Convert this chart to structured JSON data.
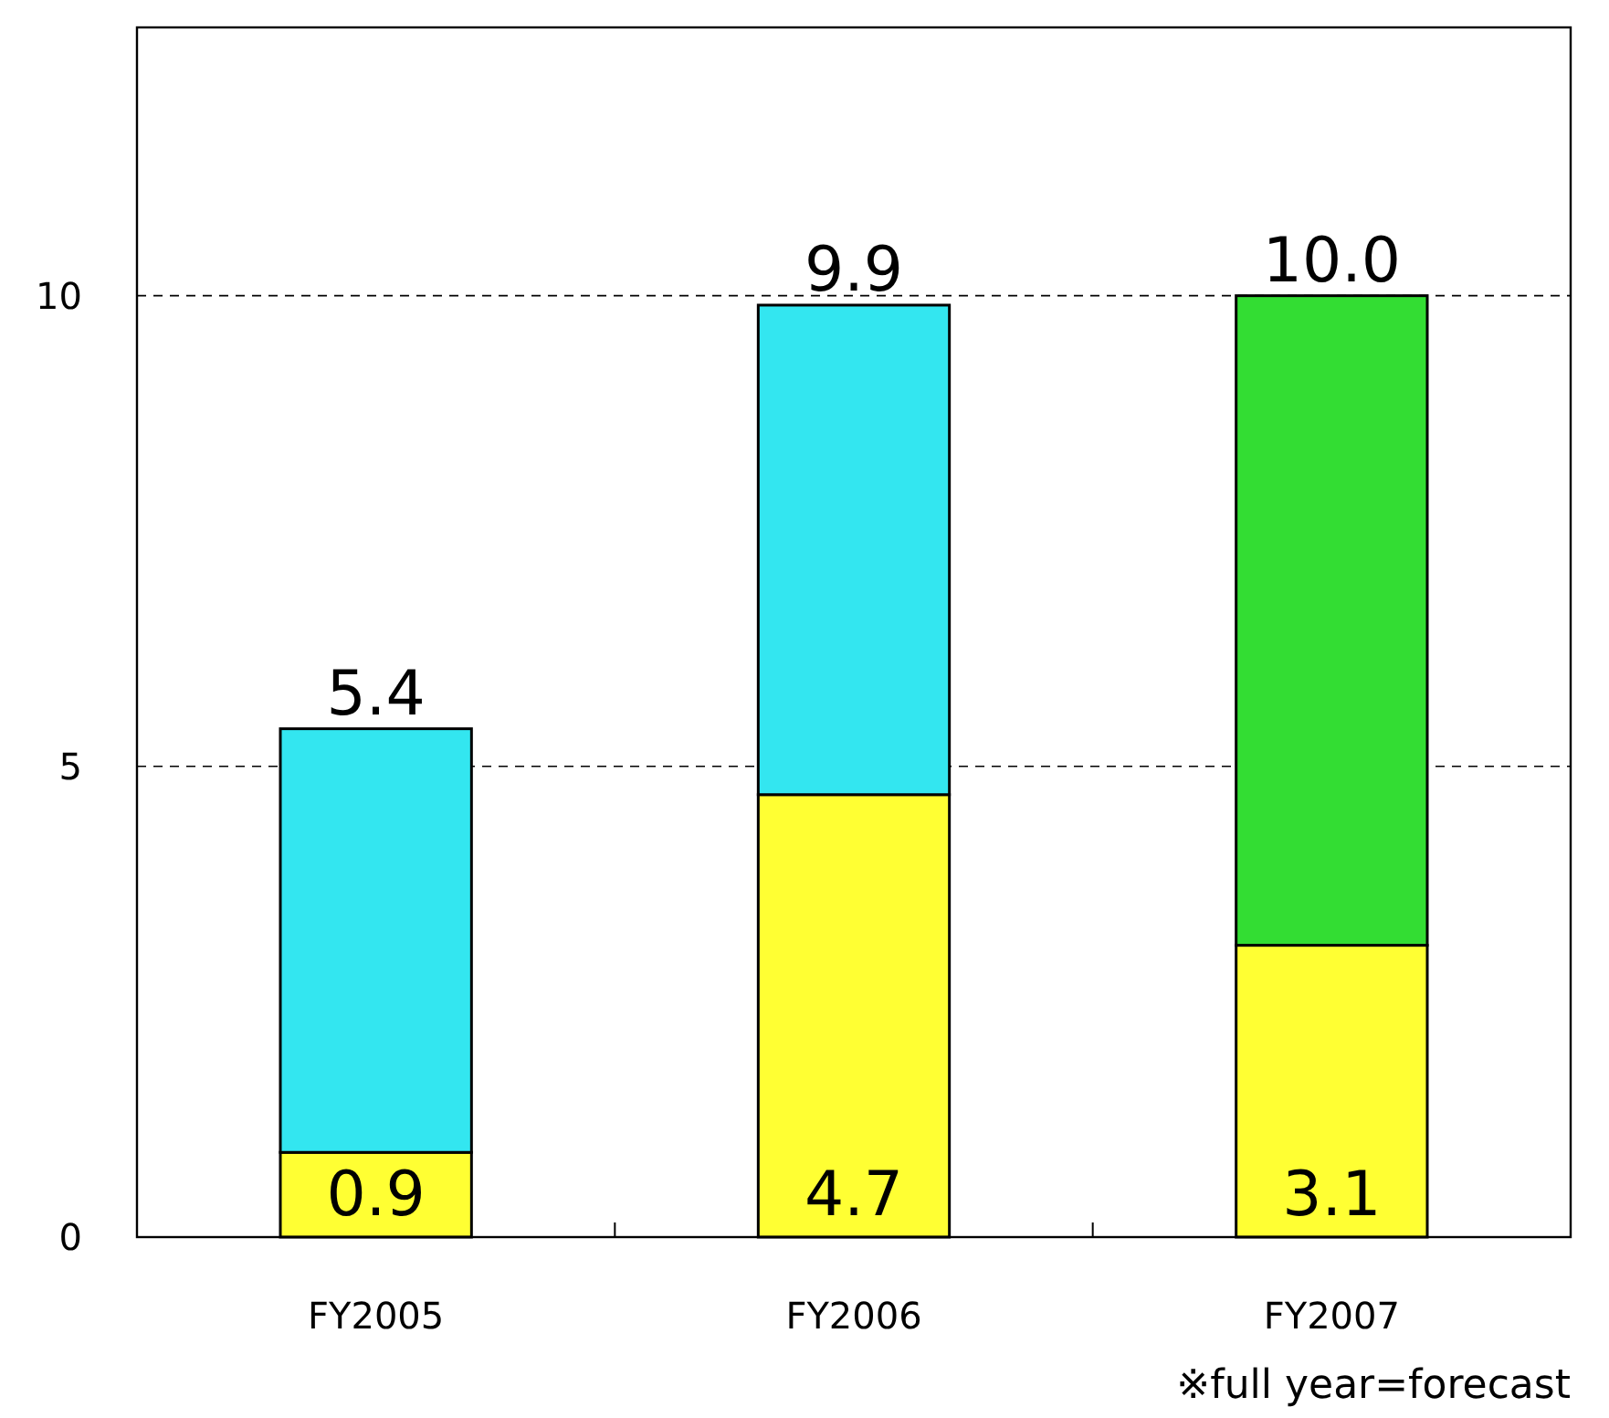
{
  "chart_data": {
    "type": "bar",
    "stacked": true,
    "categories": [
      "FY2005",
      "FY2006",
      "FY2007"
    ],
    "series": [
      {
        "color": "#ffff33",
        "values": [
          0.9,
          4.7,
          3.1
        ],
        "value_labels": [
          "0.9",
          "4.7",
          "3.1"
        ]
      },
      {
        "colors": [
          "#33e6f0",
          "#33e6f0",
          "#33dd33"
        ],
        "values": [
          4.5,
          5.2,
          6.9
        ]
      }
    ],
    "totals": [
      "5.4",
      "9.9",
      "10.0"
    ],
    "ylim": [
      0,
      12.85
    ],
    "yticks": [
      0,
      5,
      10
    ],
    "grid": "y",
    "annotations": [
      "※full year=forecast"
    ]
  }
}
